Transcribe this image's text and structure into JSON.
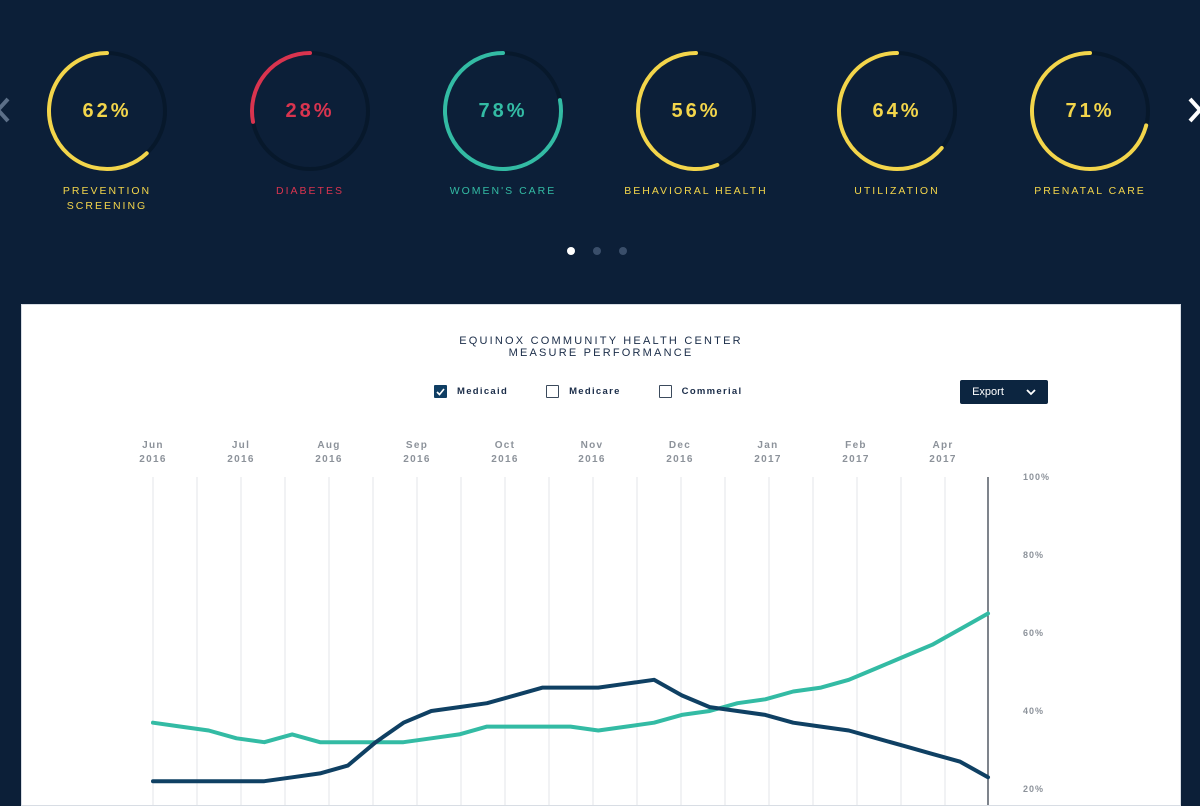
{
  "kpis": [
    {
      "value": "62%",
      "label": "PREVENTION SCREENING",
      "pct": 0.62,
      "color": "#f3d54b"
    },
    {
      "value": "28%",
      "label": "DIABETES",
      "pct": 0.28,
      "color": "#d9344f"
    },
    {
      "value": "78%",
      "label": "WOMEN'S CARE",
      "pct": 0.78,
      "color": "#33bba4"
    },
    {
      "value": "56%",
      "label": "BEHAVIORAL HEALTH",
      "pct": 0.56,
      "color": "#f3d54b"
    },
    {
      "value": "64%",
      "label": "UTILIZATION",
      "pct": 0.64,
      "color": "#f3d54b"
    },
    {
      "value": "71%",
      "label": "PRENATAL CARE",
      "pct": 0.71,
      "color": "#f3d54b"
    }
  ],
  "pager": {
    "pages": 3,
    "active": 0
  },
  "chart": {
    "title_line1": "EQUINOX COMMUNITY HEALTH CENTER",
    "title_line2": "MEASURE PERFORMANCE",
    "filters": [
      {
        "label": "Medicaid",
        "checked": true
      },
      {
        "label": "Medicare",
        "checked": false
      },
      {
        "label": "Commerial",
        "checked": false
      }
    ],
    "export_label": "Export"
  },
  "chart_data": {
    "type": "line",
    "x_month_ticks": [
      {
        "month": "Jun",
        "year": "2016"
      },
      {
        "month": "Jul",
        "year": "2016"
      },
      {
        "month": "Aug",
        "year": "2016"
      },
      {
        "month": "Sep",
        "year": "2016"
      },
      {
        "month": "Oct",
        "year": "2016"
      },
      {
        "month": "Nov",
        "year": "2016"
      },
      {
        "month": "Dec",
        "year": "2016"
      },
      {
        "month": "Jan",
        "year": "2017"
      },
      {
        "month": "Feb",
        "year": "2017"
      },
      {
        "month": "Apr",
        "year": "2017"
      }
    ],
    "y_ticks": [
      "100%",
      "80%",
      "60%",
      "40%",
      "20%"
    ],
    "ylim": [
      20,
      100
    ],
    "series": [
      {
        "color": "#33bba4",
        "values": [
          37,
          36,
          35,
          33,
          32,
          34,
          32,
          32,
          32,
          32,
          33,
          34,
          36,
          36,
          36,
          36,
          35,
          36,
          37,
          39,
          40,
          42,
          43,
          45,
          46,
          48,
          51,
          54,
          57,
          61,
          65
        ]
      },
      {
        "color": "#0f4063",
        "values": [
          22,
          22,
          22,
          22,
          22,
          23,
          24,
          26,
          32,
          37,
          40,
          41,
          42,
          44,
          46,
          46,
          46,
          47,
          48,
          44,
          41,
          40,
          39,
          37,
          36,
          35,
          33,
          31,
          29,
          27,
          23
        ]
      }
    ]
  },
  "colors": {
    "background": "#0c1f38",
    "track": "#07182b",
    "accent_teal": "#33bba4",
    "accent_yellow": "#f3d54b",
    "accent_red": "#d9344f"
  },
  "icons": {
    "prev": "chevron-left-icon",
    "next": "chevron-right-icon",
    "check": "check-icon",
    "export_caret": "chevron-down-icon"
  }
}
